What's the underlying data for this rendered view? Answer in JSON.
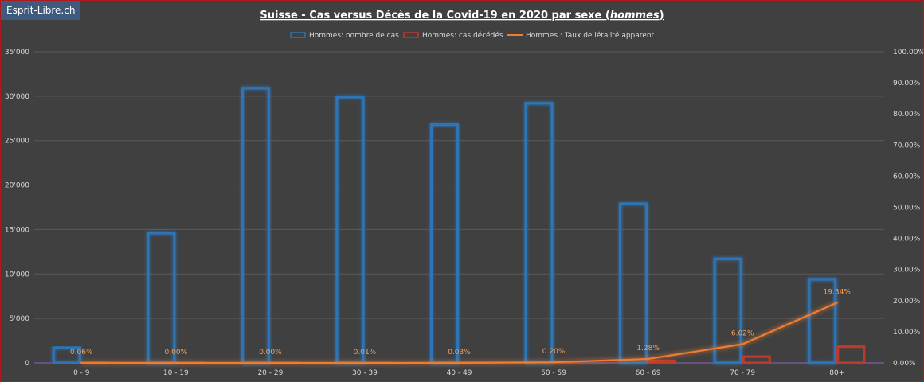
{
  "brand": "Esprit-Libre.ch",
  "chart_data": {
    "type": "bar",
    "title": "Suisse - Cas versus Décès de la Covid-19 en 2020 par sexe (",
    "title_emphasis": "hommes",
    "title_suffix": ")",
    "categories": [
      "0 - 9",
      "10 - 19",
      "20 - 29",
      "30 - 39",
      "40 - 49",
      "50 - 59",
      "60 - 69",
      "70 - 79",
      "80+"
    ],
    "series": [
      {
        "name": "Hommes: nombre de cas",
        "type": "bar",
        "axis": "left",
        "color": "#2e75b6",
        "values": [
          1700,
          14600,
          30900,
          29900,
          26800,
          29200,
          17900,
          11700,
          9400
        ]
      },
      {
        "name": "Hommes: cas décédés",
        "type": "bar",
        "axis": "left",
        "color": "#c0392b",
        "values": [
          1,
          0,
          0,
          3,
          8,
          58,
          229,
          704,
          1818
        ]
      },
      {
        "name": "Hommes : Taux de létalité apparent",
        "type": "line",
        "axis": "right",
        "color": "#ed7d31",
        "values": [
          0.06,
          0.0,
          0.0,
          0.01,
          0.03,
          0.2,
          1.28,
          6.02,
          19.34
        ],
        "labels": [
          "0.06%",
          "0.00%",
          "0.00%",
          "0.01%",
          "0.03%",
          "0.20%",
          "1.28%",
          "6.02%",
          "19.34%"
        ]
      }
    ],
    "y_left": {
      "ylim": [
        0,
        35000
      ],
      "ticks": [
        "0",
        "5'000",
        "10'000",
        "15'000",
        "20'000",
        "25'000",
        "30'000",
        "35'000"
      ]
    },
    "y_right": {
      "ylim": [
        0,
        100
      ],
      "ticks": [
        "0.00%",
        "10.00%",
        "20.00%",
        "30.00%",
        "40.00%",
        "50.00%",
        "60.00%",
        "70.00%",
        "80.00%",
        "90.00%",
        "100.00%"
      ]
    },
    "grid": true,
    "legend_position": "top-center"
  }
}
